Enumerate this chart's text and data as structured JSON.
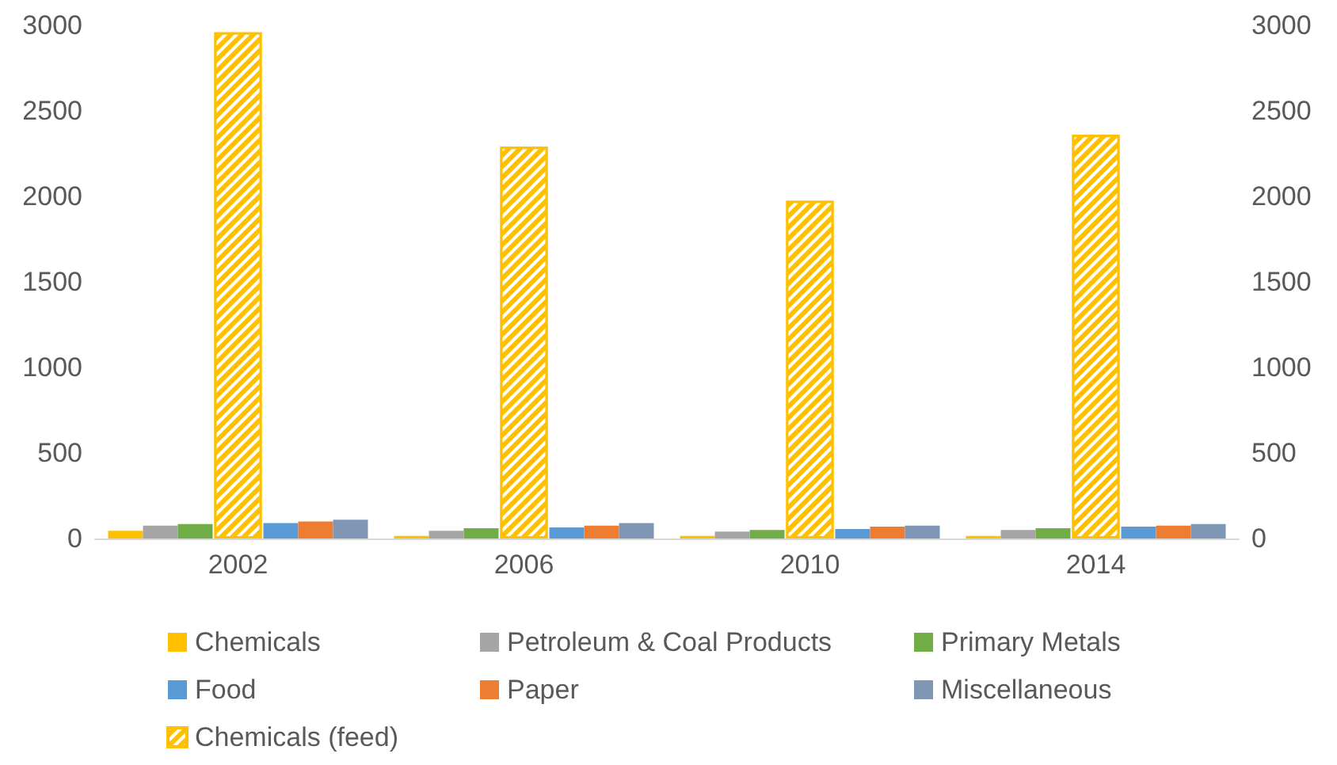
{
  "chart_data": {
    "type": "bar",
    "categories": [
      "2002",
      "2006",
      "2010",
      "2014"
    ],
    "series": [
      {
        "name": "Chemicals",
        "color": "#ffc000",
        "values": [
          45,
          15,
          15,
          15
        ]
      },
      {
        "name": "Petroleum & Coal Products",
        "color": "#a5a5a5",
        "values": [
          75,
          45,
          40,
          50
        ]
      },
      {
        "name": "Primary Metals",
        "color": "#70ad47",
        "values": [
          85,
          60,
          50,
          60
        ]
      },
      {
        "name": "Food",
        "color": "#5b9bd5",
        "values": [
          90,
          65,
          55,
          70
        ]
      },
      {
        "name": "Paper",
        "color": "#ed7d31",
        "values": [
          100,
          75,
          70,
          75
        ]
      },
      {
        "name": "Miscellaneous",
        "color": "#7f96b5",
        "values": [
          110,
          90,
          75,
          85
        ]
      },
      {
        "name": "Chemicals (feed)",
        "color": "#ffc000",
        "axis": "y2",
        "values": [
          2960,
          2290,
          1975,
          2360
        ]
      }
    ],
    "ylim": [
      0,
      3000
    ],
    "yticks": [
      0,
      500,
      1000,
      1500,
      2000,
      2500,
      3000
    ],
    "y2lim": [
      0,
      3000
    ],
    "y2ticks": [
      0,
      500,
      1000,
      1500,
      2000,
      2500,
      3000
    ],
    "grid": false,
    "legend": "bottom"
  }
}
